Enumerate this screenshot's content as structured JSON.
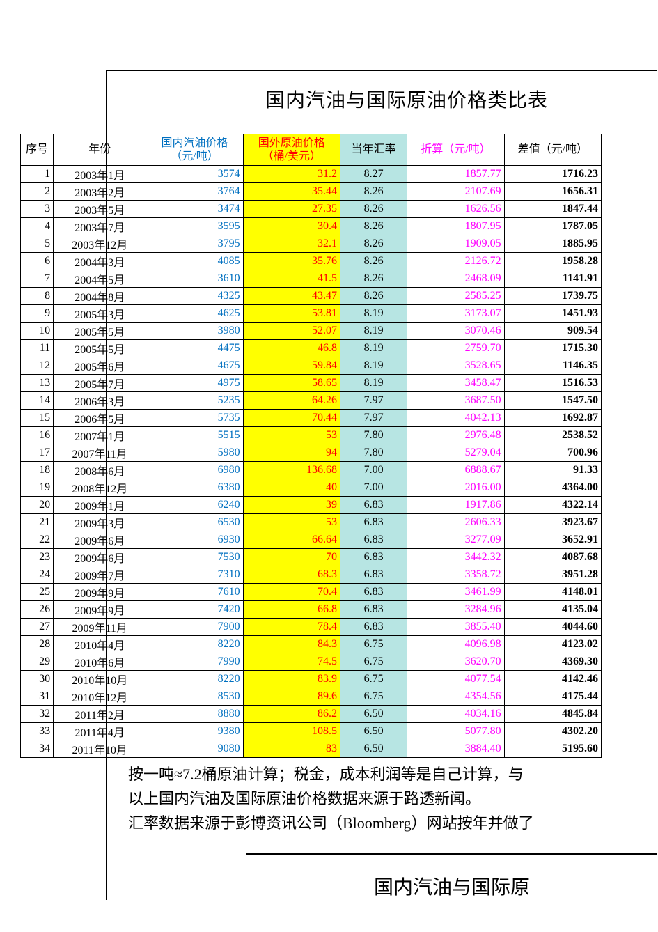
{
  "title": "国内汽油与国际原油价格类比表",
  "subtitle": "国内汽油与国际原",
  "table": {
    "columns": {
      "seq": "序号",
      "year": "年份",
      "domestic": "国内汽油价格（元/吨）",
      "intl": "国外原油价格（桶/美元）",
      "rate": "当年汇率",
      "converted": "折算（元/吨）",
      "diff": "差值（元/吨）"
    },
    "header_colors": {
      "domestic": "#0070c0",
      "intl_text": "#ff0000",
      "intl_bg": "#ffff00",
      "rate_bg": "#b7e5e3",
      "converted": "#ff00ff"
    },
    "rows": [
      {
        "seq": "1",
        "year": "2003年1月",
        "dom": "3574",
        "intl": "31.2",
        "rate": "8.27",
        "conv": "1857.77",
        "diff": "1716.23"
      },
      {
        "seq": "2",
        "year": "2003年2月",
        "dom": "3764",
        "intl": "35.44",
        "rate": "8.26",
        "conv": "2107.69",
        "diff": "1656.31"
      },
      {
        "seq": "3",
        "year": "2003年5月",
        "dom": "3474",
        "intl": "27.35",
        "rate": "8.26",
        "conv": "1626.56",
        "diff": "1847.44"
      },
      {
        "seq": "4",
        "year": "2003年7月",
        "dom": "3595",
        "intl": "30.4",
        "rate": "8.26",
        "conv": "1807.95",
        "diff": "1787.05"
      },
      {
        "seq": "5",
        "year": "2003年12月",
        "dom": "3795",
        "intl": "32.1",
        "rate": "8.26",
        "conv": "1909.05",
        "diff": "1885.95"
      },
      {
        "seq": "6",
        "year": "2004年3月",
        "dom": "4085",
        "intl": "35.76",
        "rate": "8.26",
        "conv": "2126.72",
        "diff": "1958.28"
      },
      {
        "seq": "7",
        "year": "2004年5月",
        "dom": "3610",
        "intl": "41.5",
        "rate": "8.26",
        "conv": "2468.09",
        "diff": "1141.91"
      },
      {
        "seq": "8",
        "year": "2004年8月",
        "dom": "4325",
        "intl": "43.47",
        "rate": "8.26",
        "conv": "2585.25",
        "diff": "1739.75"
      },
      {
        "seq": "9",
        "year": "2005年3月",
        "dom": "4625",
        "intl": "53.81",
        "rate": "8.19",
        "conv": "3173.07",
        "diff": "1451.93"
      },
      {
        "seq": "10",
        "year": "2005年5月",
        "dom": "3980",
        "intl": "52.07",
        "rate": "8.19",
        "conv": "3070.46",
        "diff": "909.54"
      },
      {
        "seq": "11",
        "year": "2005年5月",
        "dom": "4475",
        "intl": "46.8",
        "rate": "8.19",
        "conv": "2759.70",
        "diff": "1715.30"
      },
      {
        "seq": "12",
        "year": "2005年6月",
        "dom": "4675",
        "intl": "59.84",
        "rate": "8.19",
        "conv": "3528.65",
        "diff": "1146.35"
      },
      {
        "seq": "13",
        "year": "2005年7月",
        "dom": "4975",
        "intl": "58.65",
        "rate": "8.19",
        "conv": "3458.47",
        "diff": "1516.53"
      },
      {
        "seq": "14",
        "year": "2006年3月",
        "dom": "5235",
        "intl": "64.26",
        "rate": "7.97",
        "conv": "3687.50",
        "diff": "1547.50"
      },
      {
        "seq": "15",
        "year": "2006年5月",
        "dom": "5735",
        "intl": "70.44",
        "rate": "7.97",
        "conv": "4042.13",
        "diff": "1692.87"
      },
      {
        "seq": "16",
        "year": "2007年1月",
        "dom": "5515",
        "intl": "53",
        "rate": "7.80",
        "conv": "2976.48",
        "diff": "2538.52"
      },
      {
        "seq": "17",
        "year": "2007年11月",
        "dom": "5980",
        "intl": "94",
        "rate": "7.80",
        "conv": "5279.04",
        "diff": "700.96"
      },
      {
        "seq": "18",
        "year": "2008年6月",
        "dom": "6980",
        "intl": "136.68",
        "rate": "7.00",
        "conv": "6888.67",
        "diff": "91.33"
      },
      {
        "seq": "19",
        "year": "2008年12月",
        "dom": "6380",
        "intl": "40",
        "rate": "7.00",
        "conv": "2016.00",
        "diff": "4364.00"
      },
      {
        "seq": "20",
        "year": "2009年1月",
        "dom": "6240",
        "intl": "39",
        "rate": "6.83",
        "conv": "1917.86",
        "diff": "4322.14"
      },
      {
        "seq": "21",
        "year": "2009年3月",
        "dom": "6530",
        "intl": "53",
        "rate": "6.83",
        "conv": "2606.33",
        "diff": "3923.67"
      },
      {
        "seq": "22",
        "year": "2009年6月",
        "dom": "6930",
        "intl": "66.64",
        "rate": "6.83",
        "conv": "3277.09",
        "diff": "3652.91"
      },
      {
        "seq": "23",
        "year": "2009年6月",
        "dom": "7530",
        "intl": "70",
        "rate": "6.83",
        "conv": "3442.32",
        "diff": "4087.68"
      },
      {
        "seq": "24",
        "year": "2009年7月",
        "dom": "7310",
        "intl": "68.3",
        "rate": "6.83",
        "conv": "3358.72",
        "diff": "3951.28"
      },
      {
        "seq": "25",
        "year": "2009年9月",
        "dom": "7610",
        "intl": "70.4",
        "rate": "6.83",
        "conv": "3461.99",
        "diff": "4148.01"
      },
      {
        "seq": "26",
        "year": "2009年9月",
        "dom": "7420",
        "intl": "66.8",
        "rate": "6.83",
        "conv": "3284.96",
        "diff": "4135.04"
      },
      {
        "seq": "27",
        "year": "2009年11月",
        "dom": "7900",
        "intl": "78.4",
        "rate": "6.83",
        "conv": "3855.40",
        "diff": "4044.60"
      },
      {
        "seq": "28",
        "year": "2010年4月",
        "dom": "8220",
        "intl": "84.3",
        "rate": "6.75",
        "conv": "4096.98",
        "diff": "4123.02"
      },
      {
        "seq": "29",
        "year": "2010年6月",
        "dom": "7990",
        "intl": "74.5",
        "rate": "6.75",
        "conv": "3620.70",
        "diff": "4369.30"
      },
      {
        "seq": "30",
        "year": "2010年10月",
        "dom": "8220",
        "intl": "83.9",
        "rate": "6.75",
        "conv": "4077.54",
        "diff": "4142.46"
      },
      {
        "seq": "31",
        "year": "2010年12月",
        "dom": "8530",
        "intl": "89.6",
        "rate": "6.75",
        "conv": "4354.56",
        "diff": "4175.44"
      },
      {
        "seq": "32",
        "year": "2011年2月",
        "dom": "8880",
        "intl": "86.2",
        "rate": "6.50",
        "conv": "4034.16",
        "diff": "4845.84"
      },
      {
        "seq": "33",
        "year": "2011年4月",
        "dom": "9380",
        "intl": "108.5",
        "rate": "6.50",
        "conv": "5077.80",
        "diff": "4302.20"
      },
      {
        "seq": "34",
        "year": "2011年10月",
        "dom": "9080",
        "intl": "83",
        "rate": "6.50",
        "conv": "3884.40",
        "diff": "5195.60"
      }
    ]
  },
  "footer": {
    "line1": "按一吨≈7.2桶原油计算；税金，成本利润等是自己计算，与",
    "line2": "以上国内汽油及国际原油价格数据来源于路透新闻。",
    "line3": "汇率数据来源于彭博资讯公司（Bloomberg）网站按年并做了"
  }
}
